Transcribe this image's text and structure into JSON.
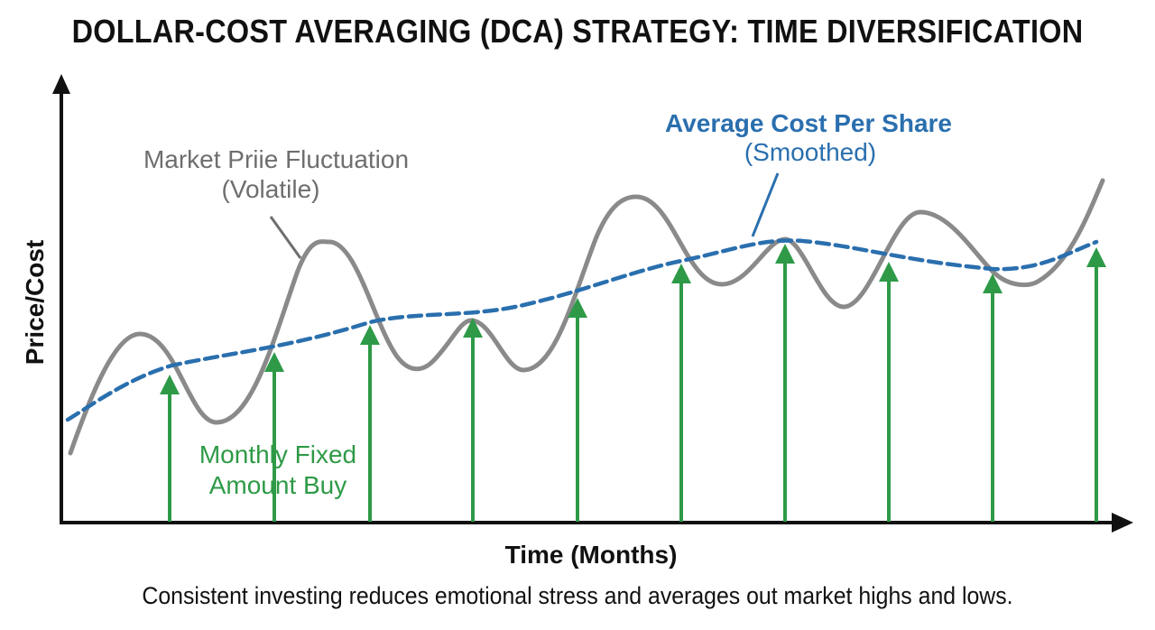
{
  "title": "DOLLAR-COST AVERAGING (DCA) STRATEGY: TIME DIVERSIFICATION",
  "caption": "Consistent investing reduces emotional stress and averages out market highs and lows.",
  "axes": {
    "y_label": "Price/Cost",
    "x_label": "Time (Months)"
  },
  "labels": {
    "market": {
      "line1": "Market Priie Fluctuation",
      "line2": "(Volatile)"
    },
    "average": {
      "line1": "Average Cost Per Share",
      "line2": "(Smoothed)"
    },
    "buy": {
      "line1": "Monthly Fixed",
      "line2": "Amount Buy"
    }
  },
  "colors": {
    "market_line": "#8a8a8a",
    "average_line": "#2a6fae",
    "buy_arrows": "#2e9a47",
    "axes": "#111111"
  },
  "diagram": {
    "buy_count": 10
  }
}
